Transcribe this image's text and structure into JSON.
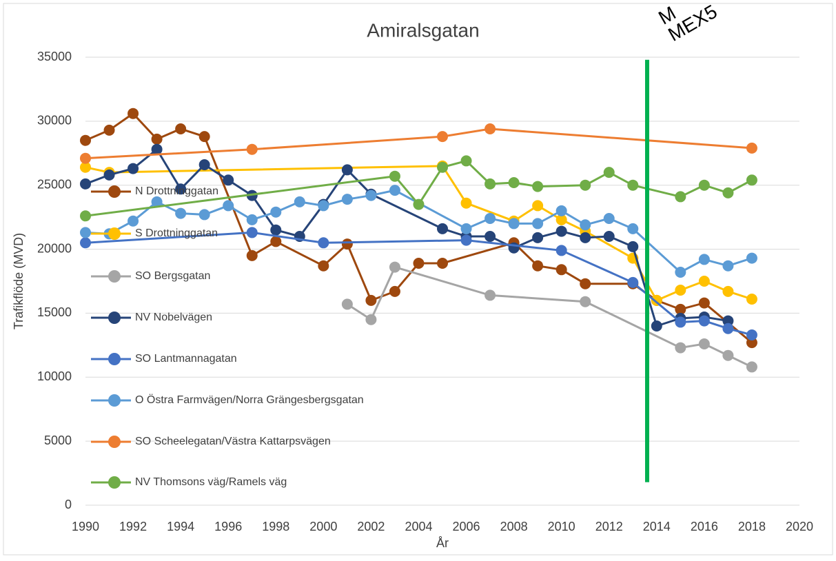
{
  "chart_data": {
    "type": "line",
    "title": "Amiralsgatan",
    "x_label": "År",
    "y_label": "Trafikflöde (MVD)",
    "xlim": [
      1990,
      2020
    ],
    "xticks": [
      1990,
      1992,
      1994,
      1996,
      1998,
      2000,
      2002,
      2004,
      2006,
      2008,
      2010,
      2012,
      2014,
      2016,
      2018,
      2020
    ],
    "ylim": [
      0,
      35000
    ],
    "yticks": [
      0,
      5000,
      10000,
      15000,
      20000,
      25000,
      30000,
      35000
    ],
    "grid": true,
    "legend": "left",
    "series": [
      {
        "name": "N Drottninggatan",
        "color": "#9e480e",
        "x": [
          1990,
          1991,
          1992,
          1993,
          1994,
          1995,
          1997,
          1998,
          2000,
          2001,
          2002,
          2003,
          2004,
          2005,
          2008,
          2009,
          2010,
          2011,
          2013,
          2014,
          2015,
          2016,
          2018
        ],
        "values": [
          28500,
          29300,
          30600,
          28600,
          29400,
          28800,
          19500,
          20600,
          18700,
          20400,
          16000,
          16700,
          18900,
          18900,
          20500,
          18700,
          18400,
          17300,
          17300,
          16000,
          15300,
          15800,
          12700
        ]
      },
      {
        "name": "S Drottninggatan",
        "color": "#ffc000",
        "x": [
          1990,
          1991,
          2005,
          2006,
          2008,
          2009,
          2010,
          2011,
          2013,
          2014,
          2015,
          2016,
          2017,
          2018
        ],
        "values": [
          26400,
          26000,
          26500,
          23600,
          22200,
          23400,
          22300,
          21400,
          19300,
          16000,
          16800,
          17500,
          16700,
          16100
        ]
      },
      {
        "name": "SO Bergsgatan",
        "color": "#a5a5a5",
        "x": [
          2001,
          2002,
          2003,
          2007,
          2011,
          2015,
          2016,
          2017,
          2018
        ],
        "values": [
          15700,
          14500,
          18600,
          16400,
          15900,
          12300,
          12600,
          11700,
          10800
        ]
      },
      {
        "name": "NV Nobelvägen",
        "color": "#264478",
        "x": [
          1990,
          1991,
          1992,
          1993,
          1994,
          1995,
          1996,
          1997,
          1998,
          1999,
          2000,
          2001,
          2002,
          2005,
          2006,
          2007,
          2008,
          2009,
          2010,
          2011,
          2012,
          2013,
          2014,
          2015,
          2016,
          2017
        ],
        "values": [
          25100,
          25800,
          26300,
          27800,
          24700,
          26600,
          25400,
          24200,
          21500,
          21000,
          23500,
          26200,
          24300,
          21600,
          21000,
          21000,
          20100,
          20900,
          21400,
          20900,
          21000,
          20200,
          14000,
          14600,
          14700,
          14400
        ]
      },
      {
        "name": "SO Lantmannagatan",
        "color": "#4472c4",
        "x": [
          1990,
          1997,
          2000,
          2006,
          2010,
          2013,
          2015,
          2016,
          2017,
          2018
        ],
        "values": [
          20500,
          21300,
          20500,
          20700,
          19900,
          17400,
          14300,
          14400,
          13800,
          13300
        ]
      },
      {
        "name": "O Östra Farmvägen/Norra Grängesbergsgatan",
        "color": "#5b9bd5",
        "x": [
          1990,
          1991,
          1992,
          1993,
          1994,
          1995,
          1996,
          1997,
          1998,
          1999,
          2000,
          2001,
          2002,
          2003,
          2006,
          2007,
          2008,
          2009,
          2010,
          2011,
          2012,
          2013,
          2015,
          2016,
          2017,
          2018
        ],
        "values": [
          21300,
          21200,
          22200,
          23700,
          22800,
          22700,
          23400,
          22300,
          22900,
          23700,
          23400,
          23900,
          24200,
          24600,
          21600,
          22400,
          22000,
          22000,
          23000,
          21900,
          22400,
          21600,
          18200,
          19200,
          18700,
          19300
        ]
      },
      {
        "name": "SO Scheelegatan/Västra Kattarpsvägen",
        "color": "#ed7d31",
        "x": [
          1990,
          1997,
          2005,
          2007,
          2018
        ],
        "values": [
          27100,
          27800,
          28800,
          29400,
          27900
        ]
      },
      {
        "name": "NV Thomsons väg/Ramels väg",
        "color": "#70ad47",
        "x": [
          1990,
          2003,
          2004,
          2005,
          2006,
          2007,
          2008,
          2009,
          2011,
          2012,
          2013,
          2015,
          2016,
          2017,
          2018
        ],
        "values": [
          22600,
          25700,
          23500,
          26400,
          26900,
          25100,
          25200,
          24900,
          25000,
          26000,
          25000,
          24100,
          25000,
          24400,
          25400
        ]
      }
    ],
    "marker_line": {
      "x": 2013.6,
      "y_range": [
        1800,
        34800
      ],
      "color": "#00b050",
      "label_lines": [
        "M",
        "MEX5"
      ]
    }
  }
}
